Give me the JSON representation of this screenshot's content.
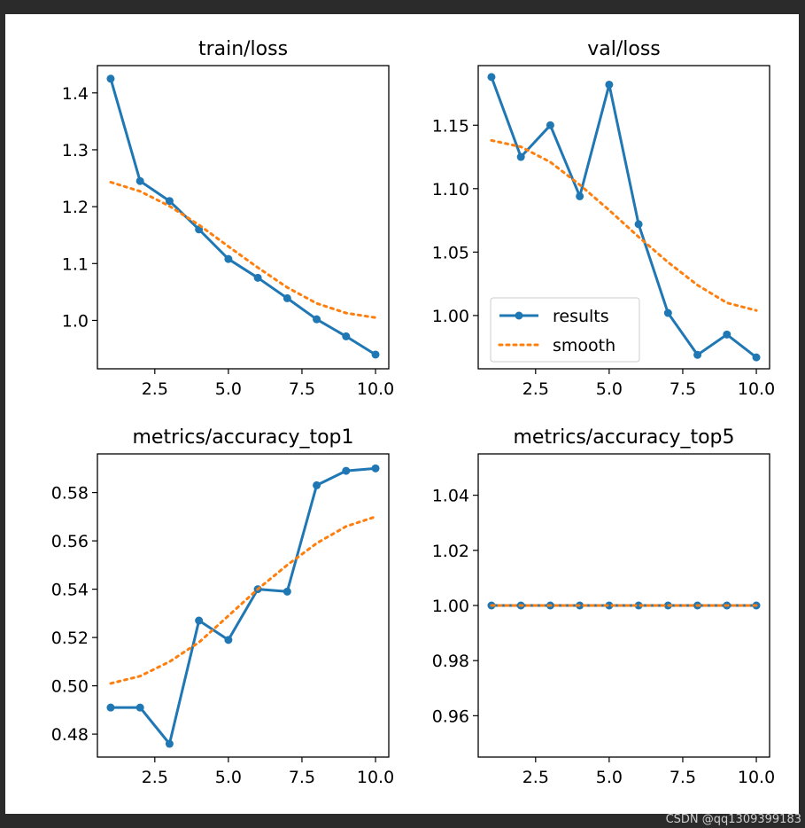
{
  "watermark": "CSDN @qq1309399183",
  "colors": {
    "results": "#1f77b4",
    "smooth": "#ff7f0e"
  },
  "chart_data": [
    {
      "type": "line",
      "title": "train/loss",
      "x": [
        1,
        2,
        3,
        4,
        5,
        6,
        7,
        8,
        9,
        10
      ],
      "xlim": [
        0.55,
        10.45
      ],
      "ylim": [
        0.915,
        1.448
      ],
      "xticks": [
        2.5,
        5.0,
        7.5,
        10.0
      ],
      "xtick_labels": [
        "2.5",
        "5.0",
        "7.5",
        "10.0"
      ],
      "yticks": [
        1.0,
        1.1,
        1.2,
        1.3,
        1.4
      ],
      "ytick_labels": [
        "1.0",
        "1.1",
        "1.2",
        "1.3",
        "1.4"
      ],
      "grid": false,
      "series": [
        {
          "name": "results",
          "style": "solid-markers",
          "values": [
            1.425,
            1.245,
            1.21,
            1.16,
            1.108,
            1.075,
            1.039,
            1.002,
            0.972,
            0.94
          ]
        },
        {
          "name": "smooth",
          "style": "dotted",
          "values": [
            1.243,
            1.227,
            1.201,
            1.168,
            1.13,
            1.093,
            1.058,
            1.03,
            1.013,
            1.005
          ]
        }
      ]
    },
    {
      "type": "line",
      "title": "val/loss",
      "x": [
        1,
        2,
        3,
        4,
        5,
        6,
        7,
        8,
        9,
        10
      ],
      "xlim": [
        0.55,
        10.45
      ],
      "ylim": [
        0.958,
        1.197
      ],
      "xticks": [
        2.5,
        5.0,
        7.5,
        10.0
      ],
      "xtick_labels": [
        "2.5",
        "5.0",
        "7.5",
        "10.0"
      ],
      "yticks": [
        1.0,
        1.05,
        1.1,
        1.15
      ],
      "ytick_labels": [
        "1.00",
        "1.05",
        "1.10",
        "1.15"
      ],
      "grid": false,
      "legend": "lower-left",
      "series": [
        {
          "name": "results",
          "style": "solid-markers",
          "values": [
            1.188,
            1.125,
            1.15,
            1.094,
            1.182,
            1.072,
            1.002,
            0.969,
            0.985,
            0.967
          ]
        },
        {
          "name": "smooth",
          "style": "dotted",
          "values": [
            1.138,
            1.133,
            1.121,
            1.103,
            1.083,
            1.062,
            1.042,
            1.024,
            1.01,
            1.004
          ]
        }
      ]
    },
    {
      "type": "line",
      "title": "metrics/accuracy_top1",
      "x": [
        1,
        2,
        3,
        4,
        5,
        6,
        7,
        8,
        9,
        10
      ],
      "xlim": [
        0.55,
        10.45
      ],
      "ylim": [
        0.4705,
        0.596
      ],
      "xticks": [
        2.5,
        5.0,
        7.5,
        10.0
      ],
      "xtick_labels": [
        "2.5",
        "5.0",
        "7.5",
        "10.0"
      ],
      "yticks": [
        0.48,
        0.5,
        0.52,
        0.54,
        0.56,
        0.58
      ],
      "ytick_labels": [
        "0.48",
        "0.50",
        "0.52",
        "0.54",
        "0.56",
        "0.58"
      ],
      "grid": false,
      "series": [
        {
          "name": "results",
          "style": "solid-markers",
          "values": [
            0.491,
            0.491,
            0.476,
            0.527,
            0.519,
            0.54,
            0.539,
            0.583,
            0.589,
            0.59
          ]
        },
        {
          "name": "smooth",
          "style": "dotted",
          "values": [
            0.501,
            0.504,
            0.51,
            0.518,
            0.529,
            0.54,
            0.55,
            0.559,
            0.566,
            0.57
          ]
        }
      ]
    },
    {
      "type": "line",
      "title": "metrics/accuracy_top5",
      "x": [
        1,
        2,
        3,
        4,
        5,
        6,
        7,
        8,
        9,
        10
      ],
      "xlim": [
        0.55,
        10.45
      ],
      "ylim": [
        0.945,
        1.055
      ],
      "xticks": [
        2.5,
        5.0,
        7.5,
        10.0
      ],
      "xtick_labels": [
        "2.5",
        "5.0",
        "7.5",
        "10.0"
      ],
      "yticks": [
        0.96,
        0.98,
        1.0,
        1.02,
        1.04
      ],
      "ytick_labels": [
        "0.96",
        "0.98",
        "1.00",
        "1.02",
        "1.04"
      ],
      "grid": false,
      "series": [
        {
          "name": "results",
          "style": "solid-markers",
          "values": [
            1.0,
            1.0,
            1.0,
            1.0,
            1.0,
            1.0,
            1.0,
            1.0,
            1.0,
            1.0
          ]
        },
        {
          "name": "smooth",
          "style": "dotted",
          "values": [
            1.0,
            1.0,
            1.0,
            1.0,
            1.0,
            1.0,
            1.0,
            1.0,
            1.0,
            1.0
          ]
        }
      ]
    }
  ]
}
